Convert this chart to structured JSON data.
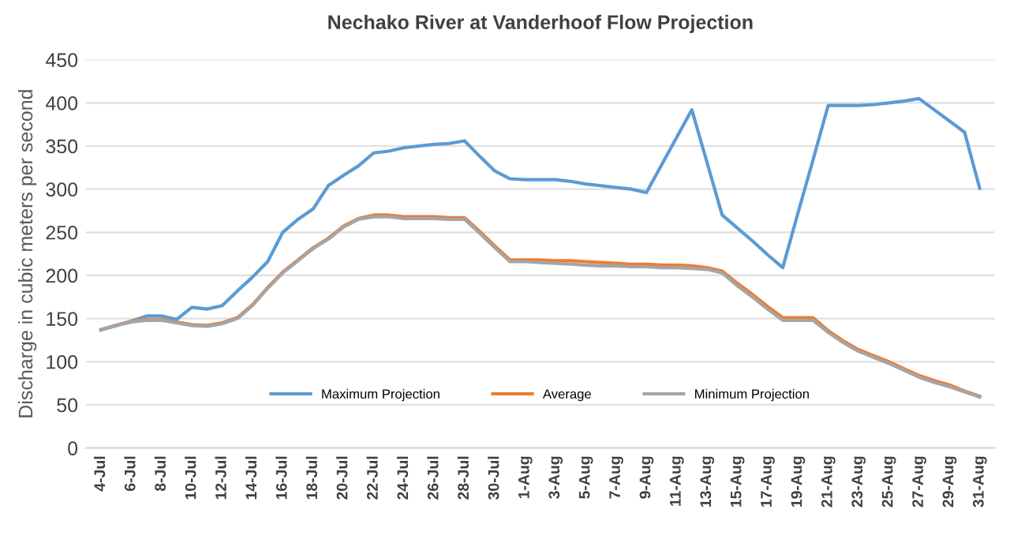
{
  "chart_data": {
    "type": "line",
    "title": "Nechako River at Vanderhoof Flow Projection",
    "ylabel": "Discharge in cubic meters per second",
    "categories": [
      "4-Jul",
      null,
      "6-Jul",
      null,
      "8-Jul",
      null,
      "10-Jul",
      null,
      "12-Jul",
      null,
      "14-Jul",
      null,
      "16-Jul",
      null,
      "18-Jul",
      null,
      "20-Jul",
      null,
      "22-Jul",
      null,
      "24-Jul",
      null,
      "26-Jul",
      null,
      "28-Jul",
      null,
      "30-Jul",
      null,
      "1-Aug",
      null,
      "3-Aug",
      null,
      "5-Aug",
      null,
      "7-Aug",
      null,
      "9-Aug",
      null,
      "11-Aug",
      null,
      "13-Aug",
      null,
      "15-Aug",
      null,
      "17-Aug",
      null,
      "19-Aug",
      null,
      "21-Aug",
      null,
      "23-Aug",
      null,
      "25-Aug",
      null,
      "27-Aug",
      null,
      "29-Aug",
      null,
      "31-Aug"
    ],
    "series": [
      {
        "name": "Maximum Projection",
        "color": "#5b9bd5",
        "values": [
          137,
          142,
          147,
          153,
          153,
          149,
          163,
          161,
          165,
          182,
          198,
          216,
          250,
          265,
          277,
          304,
          316,
          327,
          342,
          344,
          348,
          350,
          352,
          353,
          356,
          338,
          321,
          312,
          311,
          311,
          311,
          309,
          306,
          304,
          302,
          300,
          296,
          328,
          360,
          392,
          331,
          270,
          255,
          240,
          224,
          209,
          272,
          334,
          397,
          397,
          397,
          398,
          400,
          402,
          405,
          392,
          379,
          366,
          301
        ]
      },
      {
        "name": "Average",
        "color": "#ed7d31",
        "values": [
          137,
          142,
          147,
          149,
          149,
          146,
          143,
          142,
          145,
          151,
          166,
          186,
          204,
          218,
          232,
          243,
          257,
          266,
          270,
          270,
          268,
          268,
          268,
          267,
          267,
          251,
          234,
          218,
          218,
          218,
          217,
          217,
          216,
          215,
          214,
          213,
          213,
          212,
          212,
          211,
          209,
          205,
          191,
          178,
          164,
          151,
          151,
          151,
          136,
          124,
          114,
          107,
          100,
          92,
          84,
          78,
          73,
          66,
          60
        ]
      },
      {
        "name": "Minimum Projection",
        "color": "#a5a5a5",
        "values": [
          137,
          142,
          146,
          148,
          148,
          145,
          142,
          141,
          144,
          150,
          165,
          185,
          203,
          217,
          231,
          242,
          256,
          265,
          268,
          268,
          266,
          266,
          266,
          265,
          265,
          249,
          232,
          216,
          216,
          215,
          214,
          213,
          212,
          211,
          211,
          210,
          210,
          209,
          209,
          208,
          207,
          203,
          188,
          175,
          161,
          148,
          148,
          148,
          134,
          122,
          112,
          105,
          98,
          90,
          82,
          76,
          71,
          65,
          59
        ]
      }
    ],
    "ylim": [
      0,
      450
    ],
    "yticks": [
      0,
      50,
      100,
      150,
      200,
      250,
      300,
      350,
      400,
      450
    ],
    "grid": "y",
    "legend": "bottom",
    "marker": "none",
    "line_style": "solid"
  }
}
